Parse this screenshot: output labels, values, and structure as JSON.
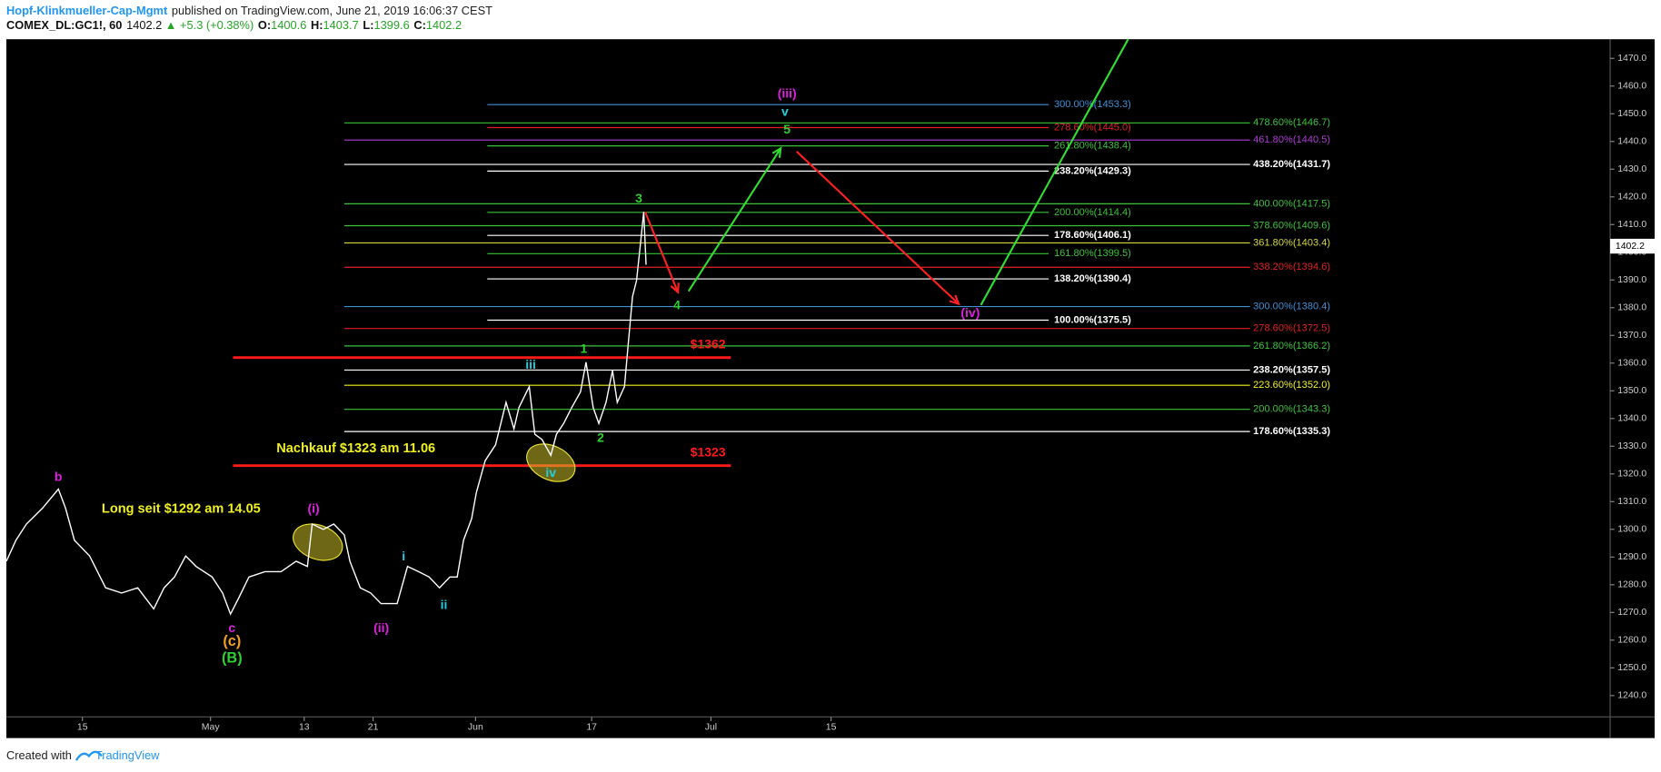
{
  "header": {
    "author": "Hopf-Klinkmueller-Cap-Mgmt",
    "published": "published on TradingView.com, June 21, 2019 16:06:37 CEST",
    "symbol": "COMEX_DL:GC1!, 60",
    "price": "1402.2",
    "change": "▲ +5.3 (+0.38%)",
    "open_label": "O:",
    "open": "1400.6",
    "high_label": "H:",
    "high": "1403.7",
    "low_label": "L:",
    "low": "1399.6",
    "close_label": "C:",
    "close": "1402.2"
  },
  "footer": {
    "created": "Created with",
    "brand": "TradingView"
  },
  "chart_data": {
    "type": "line",
    "color": "#ffffff",
    "x": [
      0,
      1.2,
      2.5,
      4.5,
      6.5,
      7.4,
      8.5,
      10.4,
      12.4,
      14.4,
      16.4,
      18.4,
      19.7,
      21,
      22.4,
      23.7,
      25.7,
      27,
      28,
      29,
      30.3,
      32.3,
      34.3,
      36.2,
      37.6,
      38.2,
      39.6,
      40.9,
      42.2,
      42.9,
      44.2,
      45.5,
      46.8,
      48.8,
      50.1,
      51.5,
      52.8,
      54.1,
      55.4,
      56.3,
      57.1,
      58.1,
      58.7,
      59.8,
      61.1,
      62.4,
      63.4,
      64,
      65.3,
      66,
      66.9,
      68,
      68.7,
      69.6,
      70.6,
      71.7,
      72.4,
      73.3,
      74,
      74.9,
      75.7,
      76.3,
      77.2,
      77.6,
      78.2,
      78.7,
      79.2,
      79.6,
      79.9
    ],
    "values": [
      1288.5,
      1296.1,
      1301.9,
      1307.6,
      1314.5,
      1307.6,
      1296.1,
      1290.4,
      1278.9,
      1277,
      1278.9,
      1271.3,
      1278.9,
      1282.8,
      1290.4,
      1286.6,
      1282.8,
      1277,
      1269.4,
      1275.1,
      1282.8,
      1284.7,
      1284.7,
      1288.5,
      1286.6,
      1301.9,
      1300,
      1301.9,
      1298,
      1288.5,
      1278.9,
      1277,
      1273.2,
      1273.2,
      1286.6,
      1284.7,
      1282.8,
      1278.9,
      1282.8,
      1282.8,
      1296.1,
      1303.8,
      1313.3,
      1324.8,
      1330.5,
      1345.8,
      1336.3,
      1343.9,
      1351.5,
      1334.3,
      1332.4,
      1326.7,
      1334.3,
      1338.2,
      1343.9,
      1349.6,
      1360.3,
      1343.9,
      1338.2,
      1345.8,
      1357.3,
      1345.8,
      1351.5,
      1364.9,
      1384,
      1389.8,
      1403.1,
      1414.6,
      1395.5
    ],
    "xlim": [
      0,
      200.3
    ],
    "xticks": [
      {
        "value": 9.5,
        "label": "15"
      },
      {
        "value": 25.5,
        "label": "May"
      },
      {
        "value": 37.2,
        "label": "13"
      },
      {
        "value": 45.8,
        "label": "21"
      },
      {
        "value": 58.6,
        "label": "Jun"
      },
      {
        "value": 73.1,
        "label": "17"
      },
      {
        "value": 88,
        "label": "Jul"
      },
      {
        "value": 103,
        "label": "15"
      }
    ],
    "ylim": [
      1232.3,
      1476.9
    ],
    "yticks": [
      {
        "value": 1240,
        "label": "1240.0"
      },
      {
        "value": 1250,
        "label": "1250.0"
      },
      {
        "value": 1260,
        "label": "1260.0"
      },
      {
        "value": 1270,
        "label": "1270.0"
      },
      {
        "value": 1280,
        "label": "1280.0"
      },
      {
        "value": 1290,
        "label": "1290.0"
      },
      {
        "value": 1300,
        "label": "1300.0"
      },
      {
        "value": 1310,
        "label": "1310.0"
      },
      {
        "value": 1320,
        "label": "1320.0"
      },
      {
        "value": 1330,
        "label": "1330.0"
      },
      {
        "value": 1340,
        "label": "1340.0"
      },
      {
        "value": 1350,
        "label": "1350.0"
      },
      {
        "value": 1360,
        "label": "1360.0"
      },
      {
        "value": 1370,
        "label": "1370.0"
      },
      {
        "value": 1380,
        "label": "1380.0"
      },
      {
        "value": 1390,
        "label": "1390.0"
      },
      {
        "value": 1400,
        "label": "1400.0"
      },
      {
        "value": 1410,
        "label": "1410.0"
      },
      {
        "value": 1420,
        "label": "1420.0"
      },
      {
        "value": 1430,
        "label": "1430.0"
      },
      {
        "value": 1440,
        "label": "1440.0"
      },
      {
        "value": 1450,
        "label": "1450.0"
      },
      {
        "value": 1460,
        "label": "1460.0"
      },
      {
        "value": 1470,
        "label": "1470.0"
      }
    ],
    "grid": false,
    "last_price": {
      "value": 1402.2,
      "label": "1402.2"
    },
    "fib_sets": [
      {
        "levels": [
          {
            "value": 1453.3,
            "label": "300.00%(1453.3)",
            "color": "#3d8fd6"
          },
          {
            "value": 1445.0,
            "label": "278.60%(1445.0)",
            "color": "#e02020"
          },
          {
            "value": 1438.4,
            "label": "261.80%(1438.4)",
            "color": "#3ac23a"
          },
          {
            "value": 1429.3,
            "label": "238.20%(1429.3)",
            "color": "#ffffff"
          },
          {
            "value": 1414.4,
            "label": "200.00%(1414.4)",
            "color": "#3ac23a"
          },
          {
            "value": 1406.1,
            "label": "178.60%(1406.1)",
            "color": "#ffffff"
          },
          {
            "value": 1399.5,
            "label": "161.80%(1399.5)",
            "color": "#3ac23a"
          },
          {
            "value": 1390.4,
            "label": "138.20%(1390.4)",
            "color": "#ffffff"
          },
          {
            "value": 1375.5,
            "label": "100.00%(1375.5)",
            "color": "#ffffff"
          }
        ]
      },
      {
        "levels": [
          {
            "value": 1446.7,
            "label": "478.60%(1446.7)",
            "color": "#3ac23a"
          },
          {
            "value": 1440.5,
            "label": "461.80%(1440.5)",
            "color": "#b03ad6"
          },
          {
            "value": 1431.7,
            "label": "438.20%(1431.7)",
            "color": "#ffffff"
          },
          {
            "value": 1417.5,
            "label": "400.00%(1417.5)",
            "color": "#3ac23a"
          },
          {
            "value": 1409.6,
            "label": "378.60%(1409.6)",
            "color": "#3ac23a"
          },
          {
            "value": 1403.4,
            "label": "361.80%(1403.4)",
            "color": "#d6d63a"
          },
          {
            "value": 1394.6,
            "label": "338.20%(1394.6)",
            "color": "#e02020"
          },
          {
            "value": 1380.4,
            "label": "300.00%(1380.4)",
            "color": "#3d8fd6"
          },
          {
            "value": 1372.5,
            "label": "278.60%(1372.5)",
            "color": "#e02020"
          },
          {
            "value": 1366.2,
            "label": "261.80%(1366.2)",
            "color": "#3ac23a"
          },
          {
            "value": 1357.5,
            "label": "238.20%(1357.5)",
            "color": "#ffffff"
          },
          {
            "value": 1352.0,
            "label": "223.60%(1352.0)",
            "color": "#f0f020"
          },
          {
            "value": 1343.3,
            "label": "200.00%(1343.3)",
            "color": "#3ac23a"
          },
          {
            "value": 1335.3,
            "label": "178.60%(1335.3)",
            "color": "#ffffff"
          }
        ]
      }
    ],
    "lines": [
      {
        "value": 1362,
        "label": "$1362",
        "color": "#ff1a1a"
      },
      {
        "value": 1323,
        "label": "$1323",
        "color": "#ff1a1a"
      }
    ],
    "annotations": [
      {
        "text": "Nachkauf $1323 am 11.06",
        "color": "#f0f020"
      },
      {
        "text": "Long seit $1292 am 14.05",
        "color": "#f0f020"
      }
    ],
    "wave_labels": [
      {
        "text": "b",
        "color": "#e020e0"
      },
      {
        "text": "(i)",
        "color": "#e020e0"
      },
      {
        "text": "(ii)",
        "color": "#e020e0"
      },
      {
        "text": "i",
        "color": "#20d0e0"
      },
      {
        "text": "ii",
        "color": "#20d0e0"
      },
      {
        "text": "iii",
        "color": "#20d0e0"
      },
      {
        "text": "iv",
        "color": "#20d0e0"
      },
      {
        "text": "1",
        "color": "#30d030"
      },
      {
        "text": "2",
        "color": "#30d030"
      },
      {
        "text": "3",
        "color": "#30d030"
      },
      {
        "text": "4",
        "color": "#30d030"
      },
      {
        "text": "5",
        "color": "#30d030"
      },
      {
        "text": "v",
        "color": "#20d0e0"
      },
      {
        "text": "(iii)",
        "color": "#e020e0"
      },
      {
        "text": "(iv)",
        "color": "#e020e0"
      },
      {
        "text": "c",
        "color": "#e020e0"
      },
      {
        "text": "(c)",
        "color": "#f0a020"
      },
      {
        "text": "(B)",
        "color": "#30d030"
      }
    ]
  }
}
